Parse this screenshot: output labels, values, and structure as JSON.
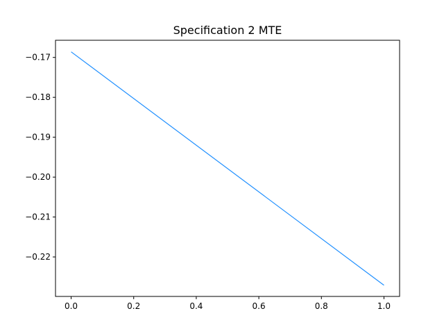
{
  "chart_data": {
    "type": "line",
    "title": "Specification 2 MTE",
    "xlabel": "",
    "ylabel": "",
    "xlim": [
      -0.05,
      1.05
    ],
    "ylim": [
      -0.2299,
      -0.1657
    ],
    "x_ticks": [
      0.0,
      0.2,
      0.4,
      0.6,
      0.8,
      1.0
    ],
    "x_tick_labels": [
      "0.0",
      "0.2",
      "0.4",
      "0.6",
      "0.8",
      "1.0"
    ],
    "y_ticks": [
      -0.17,
      -0.18,
      -0.19,
      -0.2,
      -0.21,
      -0.22
    ],
    "y_tick_labels": [
      "−0.17",
      "−0.18",
      "−0.19",
      "−0.20",
      "−0.21",
      "−0.22"
    ],
    "grid": false,
    "series": [
      {
        "color": "#1f8fff",
        "x": [
          0.0,
          1.0
        ],
        "y": [
          -0.1686,
          -0.2271
        ]
      }
    ]
  }
}
